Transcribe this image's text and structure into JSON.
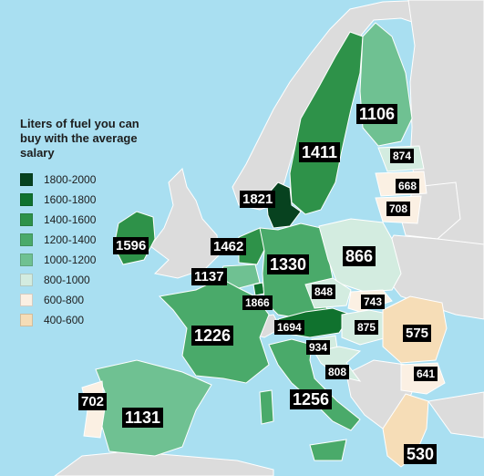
{
  "legend": {
    "title_lines": [
      "Liters of fuel you can",
      "buy with the average",
      "salary"
    ],
    "items": [
      {
        "range": "1800-2000",
        "color": "#07421f"
      },
      {
        "range": "1600-1800",
        "color": "#10722e"
      },
      {
        "range": "1400-1600",
        "color": "#2e9249"
      },
      {
        "range": "1200-1400",
        "color": "#4aaa6a"
      },
      {
        "range": "1000-1200",
        "color": "#6fc192"
      },
      {
        "range": "800-1000",
        "color": "#d3ece0"
      },
      {
        "range": "600-800",
        "color": "#fbf0e3"
      },
      {
        "range": "400-600",
        "color": "#f6ddb7"
      }
    ]
  },
  "countries": {
    "finland": "1106",
    "sweden": "1411",
    "estonia": "874",
    "latvia": "668",
    "lithuania": "708",
    "denmark": "1821",
    "ireland": "1596",
    "netherlands": "1462",
    "belgium": "1137",
    "germany": "1330",
    "poland": "866",
    "luxembourg": "1866",
    "czechia": "848",
    "slovakia": "743",
    "austria": "1694",
    "hungary": "875",
    "france": "1226",
    "slovenia": "934",
    "croatia": "808",
    "romania": "575",
    "bulgaria": "641",
    "italy": "1256",
    "portugal": "702",
    "spain": "1131",
    "greece": "530"
  }
}
